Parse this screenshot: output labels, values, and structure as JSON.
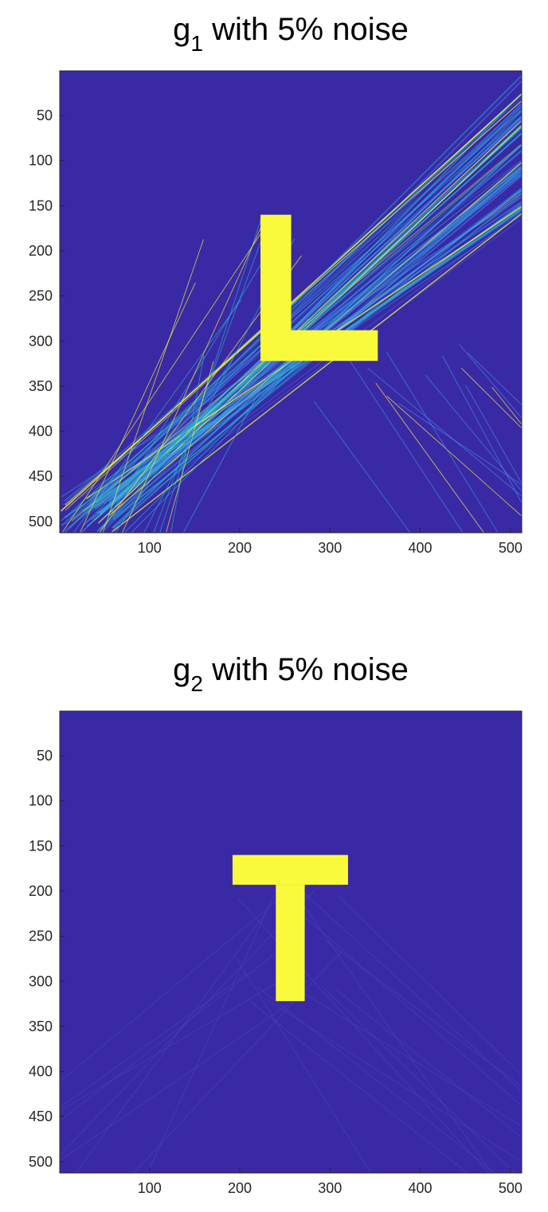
{
  "chart_data": [
    {
      "type": "heatmap",
      "title": {
        "base": "g",
        "sub": "1",
        "rest": " with 5% noise"
      },
      "xlim": [
        1,
        512
      ],
      "ylim": [
        1,
        512
      ],
      "y_reversed": true,
      "xticks": [
        100,
        200,
        300,
        400,
        500
      ],
      "yticks": [
        50,
        100,
        150,
        200,
        250,
        300,
        350,
        400,
        450,
        500
      ],
      "colormap": "parula",
      "colors": {
        "background": "#3a29a4",
        "high": "#f9fa3c",
        "mid": "#23b1d8",
        "stripe": "#3f8ff0"
      },
      "shape": {
        "letter": "L",
        "vertical_bar": {
          "x": [
            223,
            257
          ],
          "y": [
            160,
            322
          ]
        },
        "horizontal_bar": {
          "x": [
            223,
            353
          ],
          "y": [
            288,
            322
          ]
        }
      },
      "artifacts": "strong diagonal streak pattern"
    },
    {
      "type": "heatmap",
      "title": {
        "base": "g",
        "sub": "2",
        "rest": " with 5% noise"
      },
      "xlim": [
        1,
        512
      ],
      "ylim": [
        1,
        512
      ],
      "y_reversed": true,
      "xticks": [
        100,
        200,
        300,
        400,
        500
      ],
      "yticks": [
        50,
        100,
        150,
        200,
        250,
        300,
        350,
        400,
        450,
        500
      ],
      "colormap": "parula",
      "colors": {
        "background": "#3a29a4",
        "high": "#f9fa3c",
        "stripe": "#4a4ad0"
      },
      "shape": {
        "letter": "T",
        "top_bar": {
          "x": [
            192,
            320
          ],
          "y": [
            160,
            193
          ]
        },
        "stem": {
          "x": [
            240,
            272
          ],
          "y": [
            193,
            322
          ]
        }
      },
      "artifacts": "faint diagonal streaks"
    }
  ]
}
